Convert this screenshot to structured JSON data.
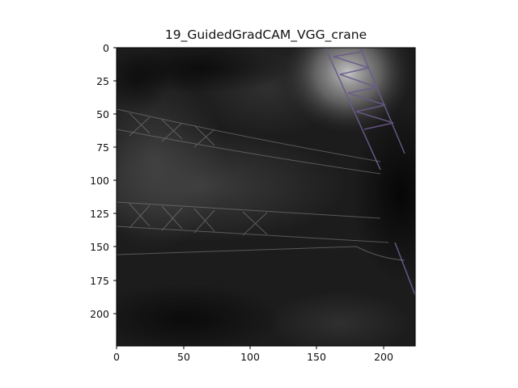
{
  "figure": {
    "title": "19_GuidedGradCAM_VGG_crane"
  },
  "image_axes": {
    "x_ticks": [
      "0",
      "50",
      "100",
      "150",
      "200"
    ],
    "y_ticks": [
      "0",
      "25",
      "50",
      "75",
      "100",
      "125",
      "150",
      "175",
      "200"
    ],
    "x_tick_values": [
      0,
      50,
      100,
      150,
      200
    ],
    "y_tick_values": [
      0,
      25,
      50,
      75,
      100,
      125,
      150,
      175,
      200
    ],
    "extent": [
      0,
      224
    ],
    "y_inverted": true
  },
  "colors": {
    "background": "#ffffff",
    "image_dark": "#111111",
    "image_mid": "#3a3a3a",
    "highlight": "#d8d8d8",
    "crane_line": "#6a5a8a"
  }
}
